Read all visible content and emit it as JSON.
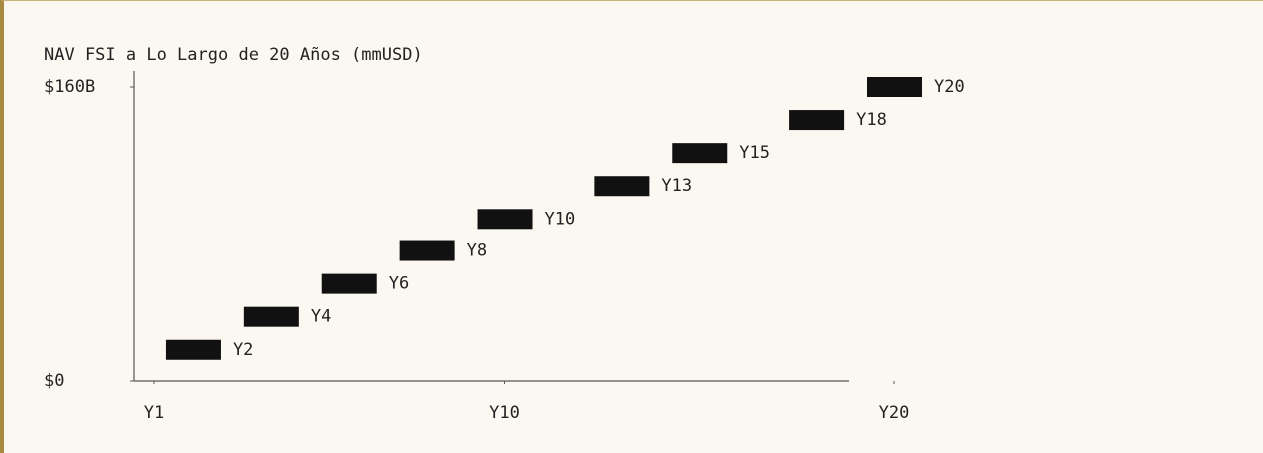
{
  "chart_data": {
    "type": "scatter",
    "title": "NAV FSI a Lo Largo de 20 Años (mmUSD)",
    "x": [
      2,
      4,
      6,
      8,
      10,
      13,
      15,
      18,
      20
    ],
    "values": [
      17,
      35,
      53,
      71,
      88,
      106,
      124,
      142,
      160
    ],
    "point_labels": [
      "Y2",
      "Y4",
      "Y6",
      "Y8",
      "Y10",
      "Y13",
      "Y15",
      "Y18",
      "Y20"
    ],
    "color": "#111111",
    "xlim": [
      1,
      20
    ],
    "xticks": [
      {
        "value": 1,
        "label": "Y1"
      },
      {
        "value": 10,
        "label": "Y10"
      },
      {
        "value": 20,
        "label": "Y20"
      }
    ],
    "ylim": [
      0,
      160
    ],
    "yticks": [
      {
        "value": 0,
        "label": "$0"
      },
      {
        "value": 160,
        "label": "$160B"
      }
    ],
    "grid": false
  }
}
